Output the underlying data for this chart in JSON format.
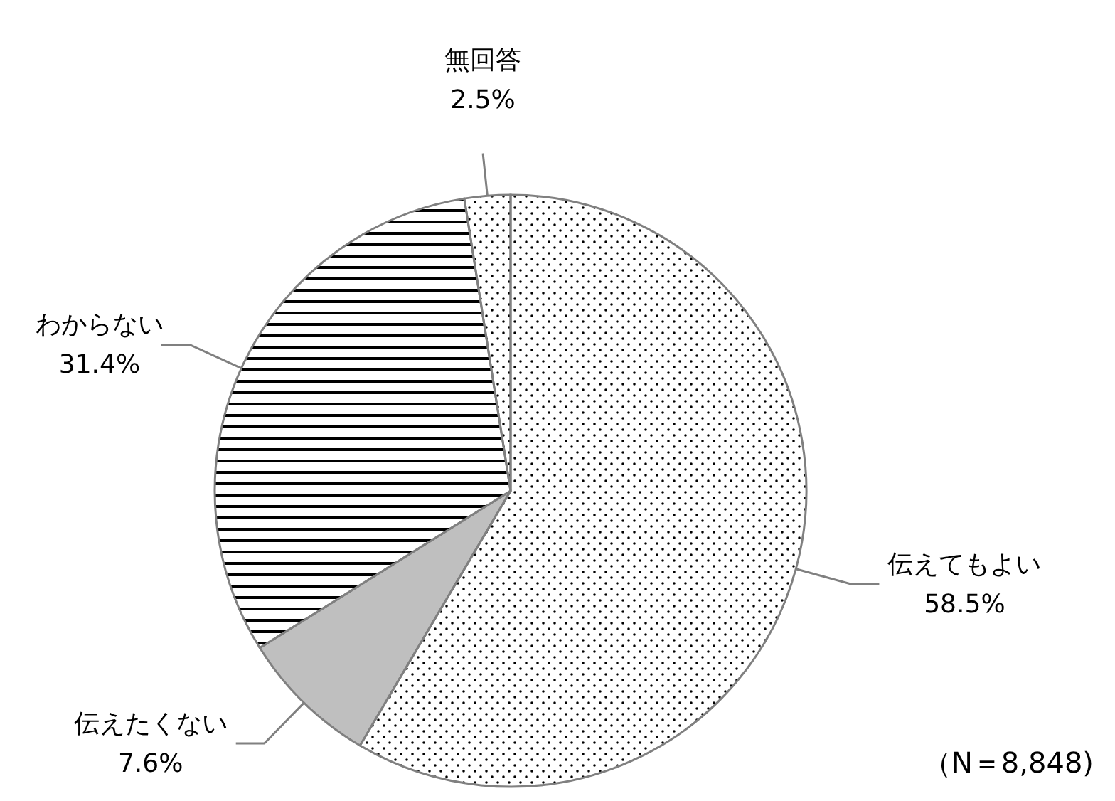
{
  "chart_data": {
    "type": "pie",
    "categories": [
      "伝えてもよい",
      "伝えたくない",
      "わからない",
      "無回答"
    ],
    "values": [
      58.5,
      7.6,
      31.4,
      2.5
    ],
    "value_labels": [
      "58.5%",
      "7.6%",
      "31.4%",
      "2.5%"
    ],
    "colors": [
      "#ffffff",
      "#bfbfbf",
      "#ffffff",
      "#ffffff"
    ],
    "annotations": [
      "（N＝8,848)"
    ],
    "legend": false
  }
}
